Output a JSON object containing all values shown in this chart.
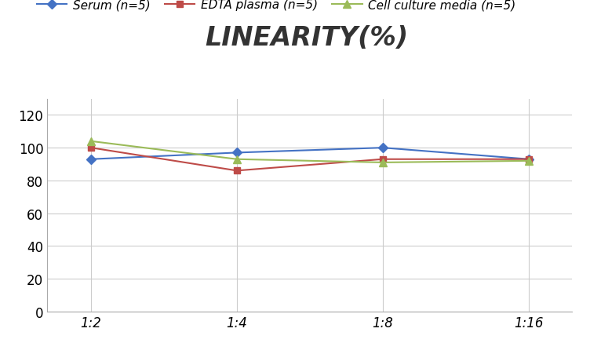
{
  "title": "LINEARITY(%)",
  "title_fontsize": 24,
  "title_fontstyle": "italic",
  "title_fontweight": "bold",
  "x_labels": [
    "1:2",
    "1:4",
    "1:8",
    "1:16"
  ],
  "x_positions": [
    0,
    1,
    2,
    3
  ],
  "serum": [
    93,
    97,
    100,
    93
  ],
  "edta": [
    100,
    86,
    93,
    93
  ],
  "cell_culture": [
    104,
    93,
    91,
    92
  ],
  "serum_color": "#4472C4",
  "edta_color": "#BE4B48",
  "cell_culture_color": "#9BBB59",
  "serum_label": "Serum (n=5)",
  "edta_label": "EDTA plasma (n=5)",
  "cell_culture_label": "Cell culture media (n=5)",
  "ylim": [
    0,
    130
  ],
  "yticks": [
    0,
    20,
    40,
    60,
    80,
    100,
    120
  ],
  "background_color": "#FFFFFF",
  "grid_color": "#CCCCCC",
  "legend_fontsize": 11,
  "tick_fontsize": 12
}
